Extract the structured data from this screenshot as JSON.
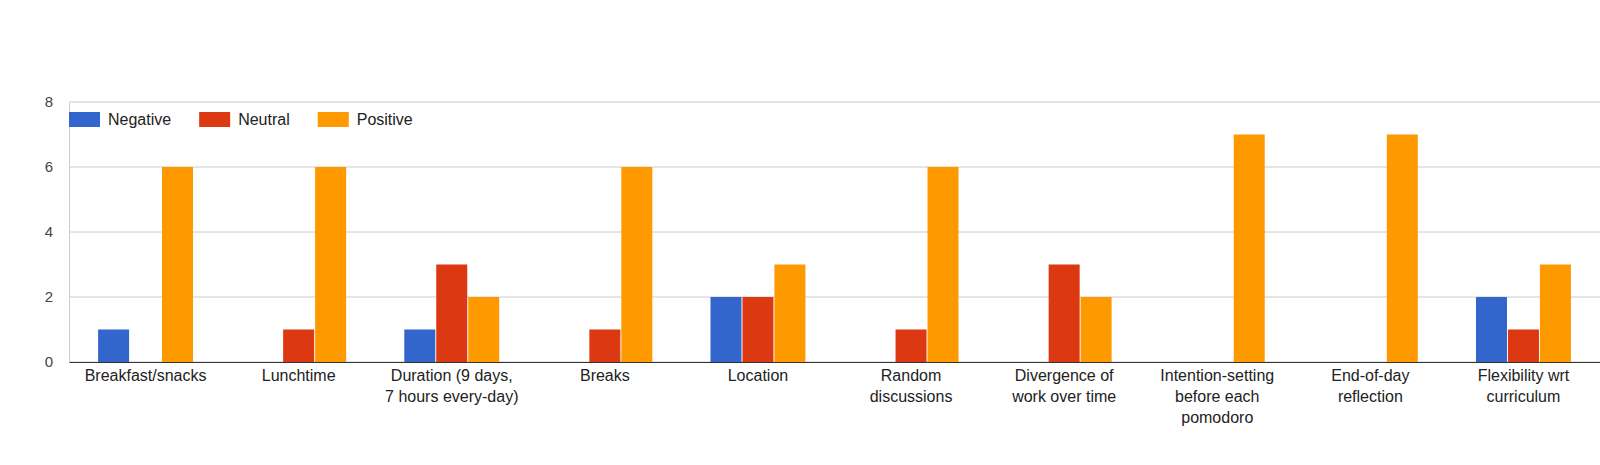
{
  "chart_data": {
    "type": "bar",
    "categories": [
      "Breakfast/snacks",
      "Lunchtime",
      "Duration (9 days, 7 hours every-day)",
      "Breaks",
      "Location",
      "Random discussions",
      "Divergence of work over time",
      "Intention-setting before each pomodoro",
      "End-of-day reflection",
      "Flexibility wrt curriculum"
    ],
    "series": [
      {
        "name": "Negative",
        "color": "#3366cc",
        "values": [
          1,
          0,
          1,
          0,
          2,
          0,
          0,
          0,
          0,
          2
        ]
      },
      {
        "name": "Neutral",
        "color": "#dc3912",
        "values": [
          0,
          1,
          3,
          1,
          2,
          1,
          3,
          0,
          0,
          1
        ]
      },
      {
        "name": "Positive",
        "color": "#ff9900",
        "values": [
          6,
          6,
          2,
          6,
          3,
          6,
          2,
          7,
          7,
          3
        ]
      }
    ],
    "ylim": [
      0,
      8
    ],
    "yticks": [
      0,
      2,
      4,
      6,
      8
    ],
    "grid": true,
    "legend": "top-left"
  }
}
